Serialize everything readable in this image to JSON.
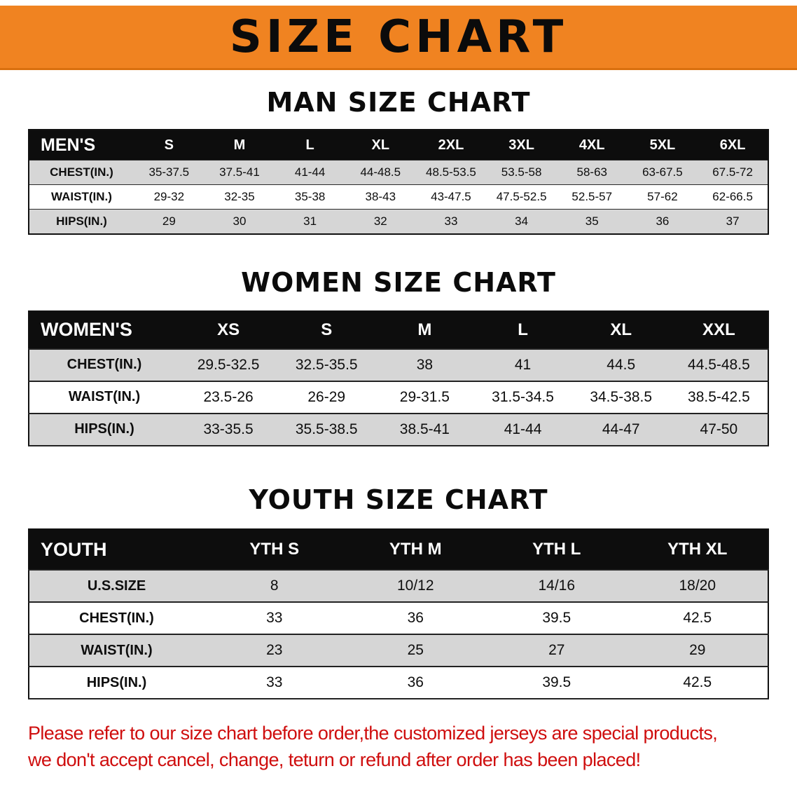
{
  "banner": {
    "title": "SIZE CHART"
  },
  "sections": [
    {
      "id": "men",
      "heading": "MAN SIZE CHART",
      "table": {
        "header": [
          "MEN'S",
          "S",
          "M",
          "L",
          "XL",
          "2XL",
          "3XL",
          "4XL",
          "5XL",
          "6XL"
        ],
        "rows": [
          [
            "CHEST(IN.)",
            "35-37.5",
            "37.5-41",
            "41-44",
            "44-48.5",
            "48.5-53.5",
            "53.5-58",
            "58-63",
            "63-67.5",
            "67.5-72"
          ],
          [
            "WAIST(IN.)",
            "29-32",
            "32-35",
            "35-38",
            "38-43",
            "43-47.5",
            "47.5-52.5",
            "52.5-57",
            "57-62",
            "62-66.5"
          ],
          [
            "HIPS(IN.)",
            "29",
            "30",
            "31",
            "32",
            "33",
            "34",
            "35",
            "36",
            "37"
          ]
        ]
      }
    },
    {
      "id": "women",
      "heading": "WOMEN SIZE CHART",
      "table": {
        "header": [
          "WOMEN'S",
          "XS",
          "S",
          "M",
          "L",
          "XL",
          "XXL"
        ],
        "rows": [
          [
            "CHEST(IN.)",
            "29.5-32.5",
            "32.5-35.5",
            "38",
            "41",
            "44.5",
            "44.5-48.5"
          ],
          [
            "WAIST(IN.)",
            "23.5-26",
            "26-29",
            "29-31.5",
            "31.5-34.5",
            "34.5-38.5",
            "38.5-42.5"
          ],
          [
            "HIPS(IN.)",
            "33-35.5",
            "35.5-38.5",
            "38.5-41",
            "41-44",
            "44-47",
            "47-50"
          ]
        ]
      }
    },
    {
      "id": "youth",
      "heading": "YOUTH SIZE CHART",
      "table": {
        "header": [
          "YOUTH",
          "YTH S",
          "YTH M",
          "YTH L",
          "YTH XL"
        ],
        "rows": [
          [
            "U.S.SIZE",
            "8",
            "10/12",
            "14/16",
            "18/20"
          ],
          [
            "CHEST(IN.)",
            "33",
            "36",
            "39.5",
            "42.5"
          ],
          [
            "WAIST(IN.)",
            "23",
            "25",
            "27",
            "29"
          ],
          [
            "HIPS(IN.)",
            "33",
            "36",
            "39.5",
            "42.5"
          ]
        ]
      }
    }
  ],
  "footer": {
    "line1": "Please refer to our size chart before order,the customized jerseys are special products,",
    "line2": "we don't accept cancel, change, teturn or refund after order has been placed!"
  },
  "colors": {
    "banner-bg": "#f08321",
    "header-bg": "#0d0d0d",
    "stripe": "#d6d6d6",
    "note-red": "#cf0e0e"
  }
}
